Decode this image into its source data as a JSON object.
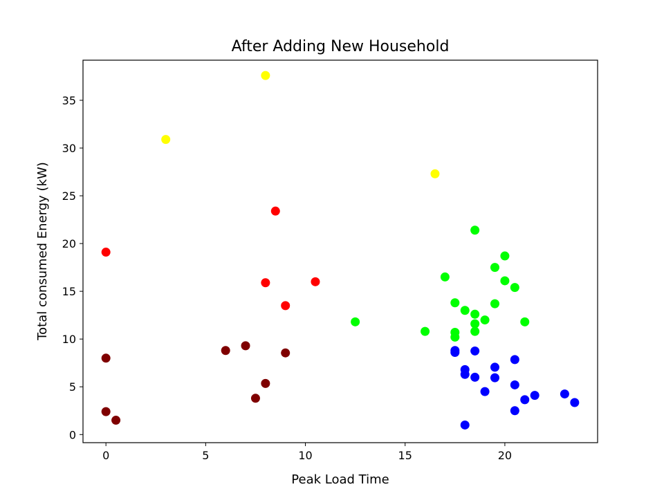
{
  "chart_data": {
    "type": "scatter",
    "title": "After Adding New Household",
    "xlabel": "Peak Load Time",
    "ylabel": "Total consumed Energy (kW)",
    "xlim": [
      -1.15,
      24.65
    ],
    "ylim": [
      -0.85,
      39.2
    ],
    "xticks": [
      0,
      5,
      10,
      15,
      20
    ],
    "yticks": [
      0,
      5,
      10,
      15,
      20,
      25,
      30,
      35
    ],
    "grid": false,
    "series": [
      {
        "color": "#ffff00",
        "points": [
          [
            3,
            30.9
          ],
          [
            8,
            37.6
          ],
          [
            16.5,
            27.3
          ]
        ]
      },
      {
        "color": "#ff0000",
        "points": [
          [
            0,
            19.1
          ],
          [
            8,
            15.9
          ],
          [
            8.5,
            23.4
          ],
          [
            9,
            13.5
          ],
          [
            10.5,
            16
          ]
        ]
      },
      {
        "color": "#7f0000",
        "points": [
          [
            0,
            8
          ],
          [
            0,
            2.4
          ],
          [
            0.5,
            1.5
          ],
          [
            6,
            8.8
          ],
          [
            7,
            9.3
          ],
          [
            7.5,
            3.8
          ],
          [
            8,
            5.35
          ],
          [
            9,
            8.55
          ]
        ]
      },
      {
        "color": "#00ff00",
        "points": [
          [
            12.5,
            11.8
          ],
          [
            16,
            10.8
          ],
          [
            17,
            16.5
          ],
          [
            17.5,
            13.8
          ],
          [
            17.5,
            10.7
          ],
          [
            17.5,
            10.2
          ],
          [
            18,
            13
          ],
          [
            18.5,
            21.4
          ],
          [
            18.5,
            12.6
          ],
          [
            18.5,
            11.6
          ],
          [
            18.5,
            10.8
          ],
          [
            19,
            12
          ],
          [
            19.5,
            17.5
          ],
          [
            19.5,
            13.7
          ],
          [
            20,
            18.7
          ],
          [
            20,
            16.1
          ],
          [
            20.5,
            15.4
          ],
          [
            21,
            11.8
          ]
        ]
      },
      {
        "color": "#0000ff",
        "points": [
          [
            17.5,
            8.8
          ],
          [
            17.5,
            8.6
          ],
          [
            18,
            6.8
          ],
          [
            18,
            6.3
          ],
          [
            18,
            1
          ],
          [
            18.5,
            8.75
          ],
          [
            18.5,
            6
          ],
          [
            19,
            4.5
          ],
          [
            19.5,
            7.05
          ],
          [
            19.5,
            5.95
          ],
          [
            20.5,
            7.85
          ],
          [
            20.5,
            5.2
          ],
          [
            20.5,
            2.5
          ],
          [
            21,
            3.65
          ],
          [
            21.5,
            4.1
          ],
          [
            23,
            4.25
          ],
          [
            23.5,
            3.35
          ]
        ]
      }
    ]
  }
}
